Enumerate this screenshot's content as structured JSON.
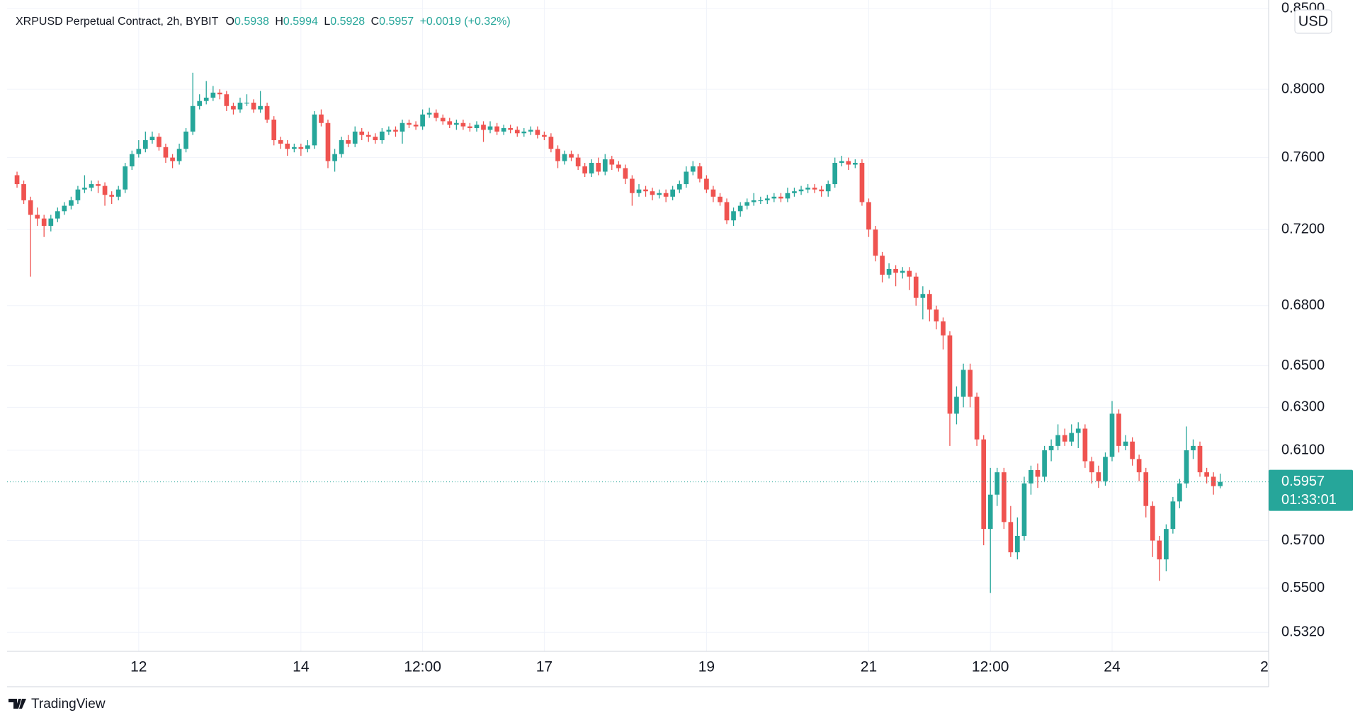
{
  "chart_data": {
    "type": "candlestick",
    "title": "XRPUSD Perpetual Contract, 2h, BYBIT",
    "ohlc_labels": [
      "O",
      "H",
      "L",
      "C"
    ],
    "ohlc_values": [
      0.5938,
      0.5994,
      0.5928,
      0.5957
    ],
    "change": "+0.0019 (+0.32%)",
    "currency": "USD",
    "last_price": 0.5957,
    "countdown": "01:33:01",
    "up_color": "#26a69a",
    "down_color": "#ef5350",
    "log_scale": true,
    "grid": true,
    "xlim": [
      10.29,
      25.93
    ],
    "xticks": [
      12,
      14,
      {
        "value": 15.5,
        "label": "12:00"
      },
      17,
      19,
      21,
      {
        "value": 22.5,
        "label": "12:00"
      },
      24,
      {
        "value": 26,
        "label": "2"
      }
    ],
    "ylim": [
      0.5245,
      0.8555
    ],
    "yticks": [
      {
        "value": 0.85,
        "label": "0.8500"
      },
      {
        "value": 0.8,
        "label": "0.8000"
      },
      {
        "value": 0.76,
        "label": "0.7600"
      },
      {
        "value": 0.72,
        "label": "0.7200"
      },
      {
        "value": 0.68,
        "label": "0.6800"
      },
      {
        "value": 0.65,
        "label": "0.6500"
      },
      {
        "value": 0.63,
        "label": "0.6300"
      },
      {
        "value": 0.61,
        "label": "0.6100"
      },
      {
        "value": 0.57,
        "label": "0.5700"
      },
      {
        "value": 0.55,
        "label": "0.5500"
      },
      {
        "value": 0.532,
        "label": "0.5320"
      }
    ],
    "x": [
      10.5,
      10.583,
      10.667,
      10.75,
      10.833,
      10.917,
      11,
      11.083,
      11.167,
      11.25,
      11.333,
      11.417,
      11.5,
      11.583,
      11.667,
      11.75,
      11.833,
      11.917,
      12,
      12.083,
      12.167,
      12.25,
      12.333,
      12.417,
      12.5,
      12.583,
      12.667,
      12.75,
      12.833,
      12.917,
      13,
      13.083,
      13.167,
      13.25,
      13.333,
      13.417,
      13.5,
      13.583,
      13.667,
      13.75,
      13.833,
      13.917,
      14,
      14.083,
      14.167,
      14.25,
      14.333,
      14.417,
      14.5,
      14.583,
      14.667,
      14.75,
      14.833,
      14.917,
      15,
      15.083,
      15.167,
      15.25,
      15.333,
      15.417,
      15.5,
      15.583,
      15.667,
      15.75,
      15.833,
      15.917,
      16,
      16.083,
      16.167,
      16.25,
      16.333,
      16.417,
      16.5,
      16.583,
      16.667,
      16.75,
      16.833,
      16.917,
      17,
      17.083,
      17.167,
      17.25,
      17.333,
      17.417,
      17.5,
      17.583,
      17.667,
      17.75,
      17.833,
      17.917,
      18,
      18.083,
      18.167,
      18.25,
      18.333,
      18.417,
      18.5,
      18.583,
      18.667,
      18.75,
      18.833,
      18.917,
      19,
      19.083,
      19.167,
      19.25,
      19.333,
      19.417,
      19.5,
      19.583,
      19.667,
      19.75,
      19.833,
      19.917,
      20,
      20.083,
      20.167,
      20.25,
      20.333,
      20.417,
      20.5,
      20.583,
      20.667,
      20.75,
      20.833,
      20.917,
      21,
      21.083,
      21.167,
      21.25,
      21.333,
      21.417,
      21.5,
      21.583,
      21.667,
      21.75,
      21.833,
      21.917,
      22,
      22.083,
      22.167,
      22.25,
      22.333,
      22.417,
      22.5,
      22.583,
      22.667,
      22.75,
      22.833,
      22.917,
      23,
      23.083,
      23.167,
      23.25,
      23.333,
      23.417,
      23.5,
      23.583,
      23.667,
      23.75,
      23.833,
      23.917,
      24,
      24.083,
      24.167,
      24.25,
      24.333,
      24.417,
      24.5,
      24.583,
      24.667,
      24.75,
      24.833,
      24.917,
      25,
      25.083,
      25.167,
      25.25,
      25.333
    ],
    "candles": [
      [
        0.75,
        0.752,
        0.743,
        0.745
      ],
      [
        0.745,
        0.747,
        0.734,
        0.736
      ],
      [
        0.736,
        0.738,
        0.695,
        0.728
      ],
      [
        0.728,
        0.732,
        0.722,
        0.726
      ],
      [
        0.726,
        0.728,
        0.716,
        0.722
      ],
      [
        0.722,
        0.728,
        0.719,
        0.726
      ],
      [
        0.726,
        0.732,
        0.724,
        0.73
      ],
      [
        0.73,
        0.735,
        0.728,
        0.733
      ],
      [
        0.733,
        0.738,
        0.731,
        0.736
      ],
      [
        0.736,
        0.744,
        0.734,
        0.742
      ],
      [
        0.742,
        0.75,
        0.74,
        0.743
      ],
      [
        0.743,
        0.747,
        0.741,
        0.745
      ],
      [
        0.745,
        0.747,
        0.74,
        0.744
      ],
      [
        0.744,
        0.746,
        0.733,
        0.739
      ],
      [
        0.739,
        0.741,
        0.734,
        0.738
      ],
      [
        0.738,
        0.744,
        0.736,
        0.742
      ],
      [
        0.742,
        0.757,
        0.74,
        0.755
      ],
      [
        0.755,
        0.764,
        0.753,
        0.762
      ],
      [
        0.762,
        0.77,
        0.76,
        0.765
      ],
      [
        0.765,
        0.775,
        0.763,
        0.77
      ],
      [
        0.77,
        0.775,
        0.768,
        0.772
      ],
      [
        0.772,
        0.774,
        0.764,
        0.766
      ],
      [
        0.766,
        0.768,
        0.757,
        0.76
      ],
      [
        0.76,
        0.762,
        0.754,
        0.758
      ],
      [
        0.758,
        0.768,
        0.756,
        0.765
      ],
      [
        0.765,
        0.777,
        0.763,
        0.775
      ],
      [
        0.775,
        0.81,
        0.773,
        0.79
      ],
      [
        0.79,
        0.797,
        0.788,
        0.793
      ],
      [
        0.793,
        0.805,
        0.791,
        0.795
      ],
      [
        0.795,
        0.802,
        0.793,
        0.798
      ],
      [
        0.798,
        0.8,
        0.794,
        0.797
      ],
      [
        0.797,
        0.799,
        0.787,
        0.79
      ],
      [
        0.79,
        0.792,
        0.785,
        0.788
      ],
      [
        0.788,
        0.795,
        0.786,
        0.792
      ],
      [
        0.792,
        0.797,
        0.79,
        0.792
      ],
      [
        0.792,
        0.794,
        0.786,
        0.788
      ],
      [
        0.788,
        0.799,
        0.786,
        0.79
      ],
      [
        0.79,
        0.792,
        0.78,
        0.782
      ],
      [
        0.782,
        0.784,
        0.767,
        0.77
      ],
      [
        0.77,
        0.772,
        0.765,
        0.768
      ],
      [
        0.768,
        0.77,
        0.761,
        0.765
      ],
      [
        0.765,
        0.768,
        0.763,
        0.766
      ],
      [
        0.766,
        0.768,
        0.761,
        0.765
      ],
      [
        0.765,
        0.77,
        0.763,
        0.767
      ],
      [
        0.767,
        0.787,
        0.765,
        0.785
      ],
      [
        0.785,
        0.788,
        0.778,
        0.78
      ],
      [
        0.78,
        0.782,
        0.754,
        0.758
      ],
      [
        0.758,
        0.765,
        0.752,
        0.762
      ],
      [
        0.762,
        0.772,
        0.76,
        0.77
      ],
      [
        0.77,
        0.773,
        0.766,
        0.768
      ],
      [
        0.768,
        0.778,
        0.766,
        0.775
      ],
      [
        0.775,
        0.777,
        0.77,
        0.773
      ],
      [
        0.773,
        0.775,
        0.769,
        0.772
      ],
      [
        0.772,
        0.774,
        0.768,
        0.77
      ],
      [
        0.77,
        0.777,
        0.768,
        0.775
      ],
      [
        0.775,
        0.778,
        0.773,
        0.776
      ],
      [
        0.776,
        0.778,
        0.772,
        0.775
      ],
      [
        0.775,
        0.782,
        0.768,
        0.78
      ],
      [
        0.78,
        0.782,
        0.777,
        0.779
      ],
      [
        0.779,
        0.781,
        0.776,
        0.778
      ],
      [
        0.778,
        0.788,
        0.776,
        0.785
      ],
      [
        0.785,
        0.789,
        0.783,
        0.786
      ],
      [
        0.786,
        0.788,
        0.781,
        0.783
      ],
      [
        0.783,
        0.785,
        0.779,
        0.781
      ],
      [
        0.781,
        0.783,
        0.777,
        0.779
      ],
      [
        0.779,
        0.782,
        0.776,
        0.78
      ],
      [
        0.78,
        0.782,
        0.776,
        0.778
      ],
      [
        0.778,
        0.78,
        0.775,
        0.777
      ],
      [
        0.777,
        0.781,
        0.775,
        0.779
      ],
      [
        0.779,
        0.781,
        0.769,
        0.776
      ],
      [
        0.776,
        0.781,
        0.774,
        0.778
      ],
      [
        0.778,
        0.78,
        0.773,
        0.775
      ],
      [
        0.775,
        0.779,
        0.773,
        0.777
      ],
      [
        0.777,
        0.779,
        0.774,
        0.776
      ],
      [
        0.776,
        0.778,
        0.772,
        0.774
      ],
      [
        0.774,
        0.777,
        0.772,
        0.775
      ],
      [
        0.775,
        0.778,
        0.773,
        0.776
      ],
      [
        0.776,
        0.778,
        0.771,
        0.773
      ],
      [
        0.773,
        0.775,
        0.77,
        0.772
      ],
      [
        0.772,
        0.774,
        0.763,
        0.765
      ],
      [
        0.765,
        0.767,
        0.754,
        0.758
      ],
      [
        0.758,
        0.764,
        0.756,
        0.762
      ],
      [
        0.762,
        0.764,
        0.758,
        0.76
      ],
      [
        0.76,
        0.762,
        0.753,
        0.755
      ],
      [
        0.755,
        0.757,
        0.749,
        0.751
      ],
      [
        0.751,
        0.759,
        0.749,
        0.757
      ],
      [
        0.757,
        0.76,
        0.75,
        0.752
      ],
      [
        0.752,
        0.762,
        0.75,
        0.759
      ],
      [
        0.759,
        0.761,
        0.753,
        0.756
      ],
      [
        0.756,
        0.758,
        0.752,
        0.754
      ],
      [
        0.754,
        0.756,
        0.745,
        0.748
      ],
      [
        0.748,
        0.75,
        0.733,
        0.74
      ],
      [
        0.74,
        0.745,
        0.738,
        0.742
      ],
      [
        0.742,
        0.744,
        0.738,
        0.741
      ],
      [
        0.741,
        0.743,
        0.736,
        0.739
      ],
      [
        0.739,
        0.742,
        0.737,
        0.74
      ],
      [
        0.74,
        0.742,
        0.735,
        0.738
      ],
      [
        0.738,
        0.744,
        0.736,
        0.742
      ],
      [
        0.742,
        0.747,
        0.74,
        0.745
      ],
      [
        0.745,
        0.755,
        0.743,
        0.752
      ],
      [
        0.752,
        0.758,
        0.75,
        0.755
      ],
      [
        0.755,
        0.757,
        0.746,
        0.748
      ],
      [
        0.748,
        0.75,
        0.74,
        0.742
      ],
      [
        0.742,
        0.744,
        0.735,
        0.738
      ],
      [
        0.738,
        0.74,
        0.733,
        0.735
      ],
      [
        0.735,
        0.737,
        0.723,
        0.725
      ],
      [
        0.725,
        0.732,
        0.722,
        0.73
      ],
      [
        0.73,
        0.735,
        0.727,
        0.733
      ],
      [
        0.733,
        0.737,
        0.731,
        0.735
      ],
      [
        0.735,
        0.74,
        0.733,
        0.736
      ],
      [
        0.736,
        0.738,
        0.734,
        0.736
      ],
      [
        0.736,
        0.739,
        0.734,
        0.737
      ],
      [
        0.737,
        0.74,
        0.735,
        0.738
      ],
      [
        0.738,
        0.74,
        0.735,
        0.737
      ],
      [
        0.737,
        0.743,
        0.735,
        0.74
      ],
      [
        0.74,
        0.743,
        0.738,
        0.741
      ],
      [
        0.741,
        0.744,
        0.739,
        0.742
      ],
      [
        0.742,
        0.745,
        0.74,
        0.743
      ],
      [
        0.743,
        0.745,
        0.74,
        0.742
      ],
      [
        0.742,
        0.744,
        0.738,
        0.741
      ],
      [
        0.741,
        0.747,
        0.738,
        0.745
      ],
      [
        0.745,
        0.76,
        0.743,
        0.757
      ],
      [
        0.757,
        0.761,
        0.755,
        0.758
      ],
      [
        0.758,
        0.76,
        0.753,
        0.756
      ],
      [
        0.756,
        0.759,
        0.754,
        0.757
      ],
      [
        0.757,
        0.759,
        0.733,
        0.735
      ],
      [
        0.735,
        0.737,
        0.716,
        0.72
      ],
      [
        0.72,
        0.722,
        0.703,
        0.706
      ],
      [
        0.706,
        0.708,
        0.692,
        0.696
      ],
      [
        0.696,
        0.702,
        0.694,
        0.699
      ],
      [
        0.699,
        0.701,
        0.69,
        0.697
      ],
      [
        0.697,
        0.7,
        0.694,
        0.698
      ],
      [
        0.698,
        0.7,
        0.688,
        0.695
      ],
      [
        0.695,
        0.697,
        0.68,
        0.684
      ],
      [
        0.684,
        0.69,
        0.673,
        0.686
      ],
      [
        0.686,
        0.688,
        0.672,
        0.678
      ],
      [
        0.678,
        0.68,
        0.668,
        0.672
      ],
      [
        0.672,
        0.674,
        0.658,
        0.665
      ],
      [
        0.665,
        0.667,
        0.612,
        0.627
      ],
      [
        0.627,
        0.64,
        0.622,
        0.635
      ],
      [
        0.635,
        0.651,
        0.63,
        0.648
      ],
      [
        0.648,
        0.651,
        0.63,
        0.635
      ],
      [
        0.635,
        0.637,
        0.612,
        0.615
      ],
      [
        0.615,
        0.617,
        0.568,
        0.575
      ],
      [
        0.575,
        0.602,
        0.548,
        0.59
      ],
      [
        0.59,
        0.602,
        0.585,
        0.6
      ],
      [
        0.6,
        0.602,
        0.575,
        0.578
      ],
      [
        0.578,
        0.585,
        0.563,
        0.565
      ],
      [
        0.565,
        0.58,
        0.562,
        0.572
      ],
      [
        0.572,
        0.598,
        0.57,
        0.595
      ],
      [
        0.595,
        0.603,
        0.59,
        0.601
      ],
      [
        0.601,
        0.604,
        0.593,
        0.598
      ],
      [
        0.598,
        0.612,
        0.596,
        0.61
      ],
      [
        0.61,
        0.615,
        0.605,
        0.612
      ],
      [
        0.612,
        0.622,
        0.61,
        0.617
      ],
      [
        0.617,
        0.62,
        0.612,
        0.614
      ],
      [
        0.614,
        0.622,
        0.612,
        0.618
      ],
      [
        0.618,
        0.623,
        0.611,
        0.62
      ],
      [
        0.62,
        0.622,
        0.602,
        0.605
      ],
      [
        0.605,
        0.607,
        0.595,
        0.6
      ],
      [
        0.6,
        0.603,
        0.593,
        0.596
      ],
      [
        0.596,
        0.609,
        0.594,
        0.607
      ],
      [
        0.607,
        0.633,
        0.605,
        0.627
      ],
      [
        0.627,
        0.629,
        0.609,
        0.612
      ],
      [
        0.612,
        0.617,
        0.61,
        0.614
      ],
      [
        0.614,
        0.616,
        0.603,
        0.606
      ],
      [
        0.606,
        0.608,
        0.596,
        0.6
      ],
      [
        0.6,
        0.602,
        0.58,
        0.585
      ],
      [
        0.585,
        0.587,
        0.563,
        0.57
      ],
      [
        0.57,
        0.572,
        0.553,
        0.562
      ],
      [
        0.562,
        0.577,
        0.557,
        0.575
      ],
      [
        0.575,
        0.589,
        0.573,
        0.587
      ],
      [
        0.587,
        0.597,
        0.584,
        0.595
      ],
      [
        0.595,
        0.621,
        0.593,
        0.61
      ],
      [
        0.61,
        0.615,
        0.606,
        0.612
      ],
      [
        0.612,
        0.614,
        0.598,
        0.6
      ],
      [
        0.6,
        0.602,
        0.595,
        0.598
      ],
      [
        0.598,
        0.6,
        0.59,
        0.5938
      ],
      [
        0.5938,
        0.5994,
        0.5928,
        0.5957
      ]
    ]
  },
  "footer": {
    "brand": "TradingView"
  }
}
